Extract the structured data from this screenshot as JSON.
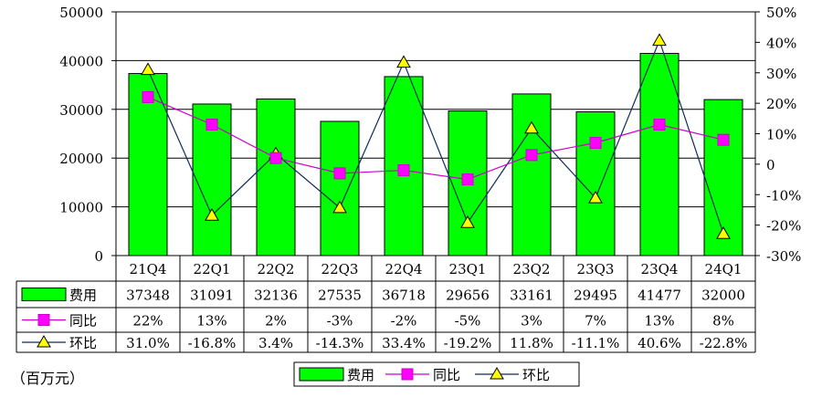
{
  "chart_data": {
    "type": "bar",
    "categories": [
      "21Q4",
      "22Q1",
      "22Q2",
      "22Q3",
      "22Q4",
      "23Q1",
      "23Q2",
      "23Q3",
      "23Q4",
      "24Q1"
    ],
    "series": [
      {
        "name": "费用",
        "type": "bar",
        "axis": "left",
        "color": "#00ff00",
        "values": [
          37348,
          31091,
          32136,
          27535,
          36718,
          29656,
          33161,
          29495,
          41477,
          32000
        ],
        "labels": [
          "37348",
          "31091",
          "32136",
          "27535",
          "36718",
          "29656",
          "33161",
          "29495",
          "41477",
          "32000"
        ]
      },
      {
        "name": "同比",
        "type": "line",
        "axis": "right",
        "color": "#cc00cc",
        "marker": "square",
        "marker_color": "#ff00ff",
        "values": [
          22,
          13,
          2,
          -3,
          -2,
          -5,
          3,
          7,
          13,
          8
        ],
        "labels": [
          "22%",
          "13%",
          "2%",
          "-3%",
          "-2%",
          "-5%",
          "3%",
          "7%",
          "13%",
          "8%"
        ]
      },
      {
        "name": "环比",
        "type": "line",
        "axis": "right",
        "color": "#0d2b5e",
        "marker": "triangle",
        "marker_color": "#ffff00",
        "values": [
          31.0,
          -16.8,
          3.4,
          -14.3,
          33.4,
          -19.2,
          11.8,
          -11.1,
          40.6,
          -22.8
        ],
        "labels": [
          "31.0%",
          "-16.8%",
          "3.4%",
          "-14.3%",
          "33.4%",
          "-19.2%",
          "11.8%",
          "-11.1%",
          "40.6%",
          "-22.8%"
        ]
      }
    ],
    "y_left": {
      "range": [
        0,
        50000
      ],
      "ticks": [
        "0",
        "10000",
        "20000",
        "30000",
        "40000",
        "50000"
      ]
    },
    "y_right": {
      "range": [
        -30,
        50
      ],
      "ticks": [
        "-30%",
        "-20%",
        "-10%",
        "0",
        "10%",
        "20%",
        "30%",
        "40%",
        "50%"
      ]
    },
    "grid": "horizontal",
    "legend_position": "bottom",
    "unit_note": "（百万元）"
  }
}
